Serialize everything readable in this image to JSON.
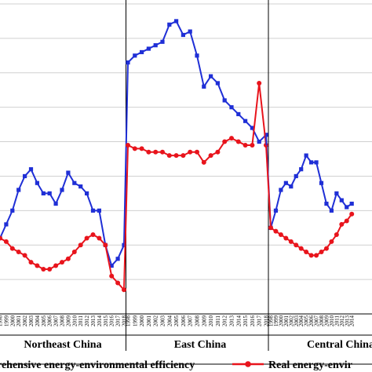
{
  "chart_data": {
    "type": "line",
    "title": "",
    "xlabel": "",
    "ylabel": "",
    "ylim": [
      0.2,
      1.1
    ],
    "grid": "horizontal",
    "legend_placement": "bottom",
    "regions": [
      {
        "name": "Northeast China",
        "x": [
          "1998",
          "1999",
          "2000",
          "2001",
          "2002",
          "2003",
          "2004",
          "2005",
          "2006",
          "2007",
          "2008",
          "2009",
          "2010",
          "2011",
          "2012",
          "2013",
          "2014",
          "2015",
          "2016",
          "2017",
          "2018"
        ],
        "series": [
          {
            "values": [
              0.42,
              0.46,
              0.5,
              0.56,
              0.6,
              0.62,
              0.58,
              0.55,
              0.55,
              0.52,
              0.56,
              0.61,
              0.58,
              0.57,
              0.55,
              0.5,
              0.5,
              0.4,
              0.34,
              0.36,
              0.4
            ]
          },
          {
            "values": [
              0.42,
              0.41,
              0.39,
              0.38,
              0.37,
              0.35,
              0.34,
              0.33,
              0.33,
              0.34,
              0.35,
              0.36,
              0.38,
              0.4,
              0.42,
              0.43,
              0.42,
              0.4,
              0.31,
              0.29,
              0.27
            ]
          }
        ]
      },
      {
        "name": "East China",
        "x": [
          "1998",
          "1999",
          "2000",
          "2001",
          "2002",
          "2003",
          "2004",
          "2005",
          "2006",
          "2007",
          "2008",
          "2009",
          "2010",
          "2011",
          "2012",
          "2013",
          "2014",
          "2015",
          "2016",
          "2017",
          "2018"
        ],
        "series": [
          {
            "values": [
              0.93,
              0.95,
              0.96,
              0.97,
              0.98,
              0.99,
              1.04,
              1.05,
              1.01,
              1.02,
              0.95,
              0.86,
              0.89,
              0.87,
              0.82,
              0.8,
              0.78,
              0.76,
              0.74,
              0.7,
              0.72
            ]
          },
          {
            "values": [
              0.69,
              0.68,
              0.68,
              0.67,
              0.67,
              0.67,
              0.66,
              0.66,
              0.66,
              0.67,
              0.67,
              0.64,
              0.66,
              0.67,
              0.7,
              0.71,
              0.7,
              0.69,
              0.69,
              0.87,
              0.69
            ]
          }
        ]
      },
      {
        "name": "Central China",
        "x": [
          "1998",
          "1999",
          "2000",
          "2001",
          "2002",
          "2003",
          "2004",
          "2005",
          "2006",
          "2007",
          "2008",
          "2009",
          "2010",
          "2011",
          "2012",
          "2013",
          "2014"
        ],
        "series": [
          {
            "values": [
              0.45,
              0.5,
              0.56,
              0.58,
              0.57,
              0.6,
              0.62,
              0.66,
              0.64,
              0.64,
              0.58,
              0.52,
              0.5,
              0.55,
              0.53,
              0.51,
              0.52
            ]
          },
          {
            "values": [
              0.45,
              0.44,
              0.43,
              0.42,
              0.41,
              0.4,
              0.39,
              0.38,
              0.37,
              0.37,
              0.38,
              0.39,
              0.41,
              0.43,
              0.46,
              0.47,
              0.49
            ]
          }
        ]
      }
    ],
    "colors": {
      "blue": "#1f2fd6",
      "red": "#e8141c"
    },
    "legend": [
      {
        "label": "rehensive energy-environmental efficiency"
      },
      {
        "label": "Real energy-envir"
      }
    ]
  }
}
